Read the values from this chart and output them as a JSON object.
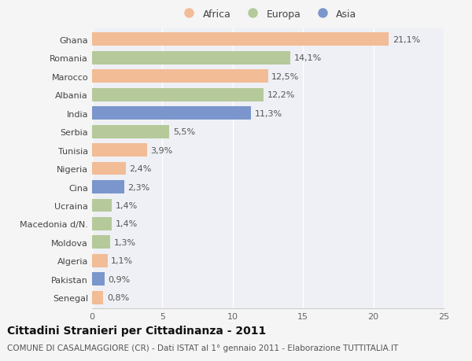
{
  "categories": [
    "Ghana",
    "Romania",
    "Marocco",
    "Albania",
    "India",
    "Serbia",
    "Tunisia",
    "Nigeria",
    "Cina",
    "Ucraina",
    "Macedonia d/N.",
    "Moldova",
    "Algeria",
    "Pakistan",
    "Senegal"
  ],
  "values": [
    21.1,
    14.1,
    12.5,
    12.2,
    11.3,
    5.5,
    3.9,
    2.4,
    2.3,
    1.4,
    1.4,
    1.3,
    1.1,
    0.9,
    0.8
  ],
  "labels": [
    "21,1%",
    "14,1%",
    "12,5%",
    "12,2%",
    "11,3%",
    "5,5%",
    "3,9%",
    "2,4%",
    "2,3%",
    "1,4%",
    "1,4%",
    "1,3%",
    "1,1%",
    "0,9%",
    "0,8%"
  ],
  "continents": [
    "Africa",
    "Europa",
    "Africa",
    "Europa",
    "Asia",
    "Europa",
    "Africa",
    "Africa",
    "Asia",
    "Europa",
    "Europa",
    "Europa",
    "Africa",
    "Asia",
    "Africa"
  ],
  "colors": {
    "Africa": "#F2BC96",
    "Europa": "#B5C99A",
    "Asia": "#7B96CC"
  },
  "legend_labels": [
    "Africa",
    "Europa",
    "Asia"
  ],
  "xlim": [
    0,
    25
  ],
  "xticks": [
    0,
    5,
    10,
    15,
    20,
    25
  ],
  "title": "Cittadini Stranieri per Cittadinanza - 2011",
  "subtitle": "COMUNE DI CASALMAGGIORE (CR) - Dati ISTAT al 1° gennaio 2011 - Elaborazione TUTTITALIA.IT",
  "background_color": "#f5f5f5",
  "plot_bg_color": "#eef0f5",
  "grid_color": "#ffffff",
  "title_fontsize": 10,
  "subtitle_fontsize": 7.5,
  "label_fontsize": 8,
  "tick_fontsize": 8,
  "legend_fontsize": 9
}
